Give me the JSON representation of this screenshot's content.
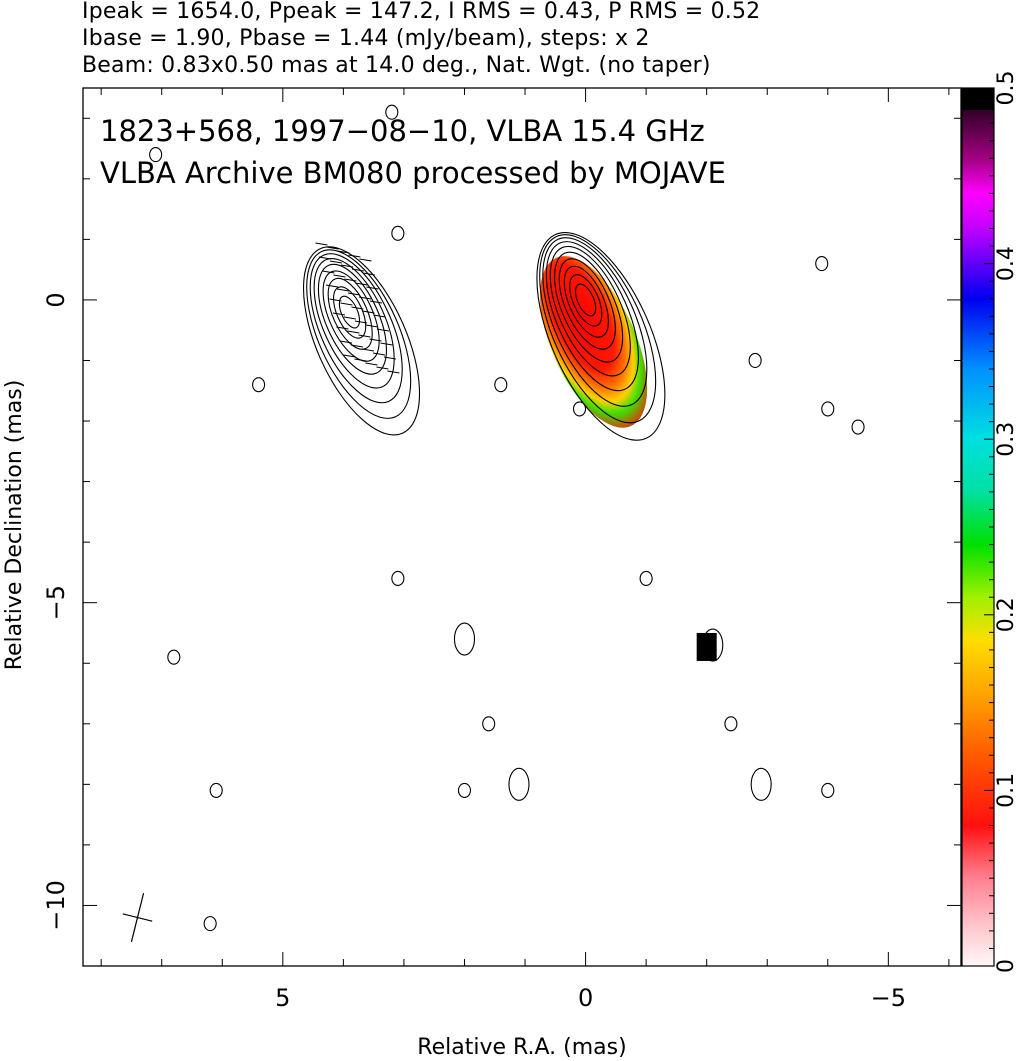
{
  "header": {
    "line1": "Ipeak = 1654.0, Ppeak = 147.2, I RMS = 0.43, P RMS = 0.52",
    "line2": "Ibase = 1.90, Pbase = 1.44 (mJy/beam), steps: x 2",
    "line3": "Beam: 0.83x0.50 mas at 14.0 deg., Nat. Wgt. (no taper)"
  },
  "chart_data": {
    "type": "contour",
    "annotation_line1": "1823+568, 1997−08−10, VLBA 15.4 GHz",
    "annotation_line2": "VLBA Archive BM080 processed by MOJAVE",
    "xlabel": "Relative R.A. (mas)",
    "ylabel": "Relative Declination (mas)",
    "xlim": [
      8.3,
      -6.2
    ],
    "ylim": [
      -11.0,
      3.5
    ],
    "x_ticks": [
      5,
      0,
      -5
    ],
    "x_tick_labels": [
      "5",
      "0",
      "−5"
    ],
    "y_ticks": [
      0,
      -5,
      -10
    ],
    "y_tick_labels": [
      "0",
      "−5",
      "−10"
    ],
    "colorbar": {
      "range": [
        0,
        0.5
      ],
      "ticks": [
        0,
        0.1,
        0.2,
        0.3,
        0.4,
        0.5
      ],
      "tick_labels": [
        "0",
        "0.1",
        "0.2",
        "0.3",
        "0.4",
        "0.5"
      ]
    },
    "components": [
      {
        "x": 0.0,
        "y": 0.0,
        "contour_levels": 10,
        "polarized": true
      },
      {
        "x": 3.9,
        "y": -0.2,
        "contour_levels": 9,
        "polarized": false
      }
    ],
    "beam": {
      "major_mas": 0.83,
      "minor_mas": 0.5,
      "pa_deg": 14.0
    },
    "colors": {
      "contour": "#000000",
      "axes": "#000000"
    }
  }
}
